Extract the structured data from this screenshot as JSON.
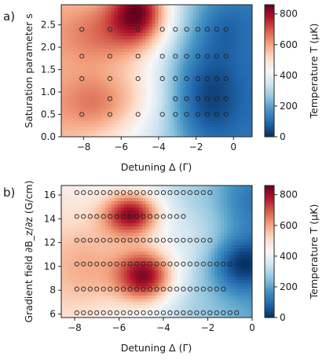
{
  "chart_data": [
    {
      "type": "heatmap",
      "panel_label": "a)",
      "xlabel": "Detuning Δ (Γ)",
      "ylabel": "Saturation parameter s",
      "xlim": [
        -9.2,
        1.0
      ],
      "ylim": [
        0.0,
        2.95
      ],
      "xticks": [
        -8,
        -6,
        -4,
        -2,
        0
      ],
      "xtick_labels": [
        "−8",
        "−6",
        "−4",
        "−2",
        "0"
      ],
      "yticks": [
        0.0,
        0.5,
        1.0,
        1.5,
        2.0,
        2.5
      ],
      "ytick_labels": [
        "0.0",
        "0.5",
        "1.0",
        "1.5",
        "2.0",
        "2.5"
      ],
      "colorbar": {
        "label": "Temperature T (μK)",
        "ticks": [
          0,
          200,
          400,
          600,
          800
        ],
        "tick_labels": [
          "0",
          "200",
          "400",
          "600",
          "800"
        ],
        "range": [
          0,
          860
        ]
      },
      "cmap_stops": [
        "#053061",
        "#2166ac",
        "#4393c3",
        "#92c5de",
        "#d1e5f0",
        "#f7f7f7",
        "#fddbc7",
        "#f4a582",
        "#d6604d",
        "#b2182b",
        "#67001f"
      ],
      "temperature_sources": [
        {
          "x": -5.0,
          "y": 2.8,
          "amplitude": 420,
          "sx": 1.1,
          "sy": 0.55
        },
        {
          "x": -7.0,
          "y": 2.3,
          "amplitude": 180,
          "sx": 1.6,
          "sy": 0.6
        },
        {
          "x": -7.2,
          "y": 0.75,
          "amplitude": 170,
          "sx": 1.5,
          "sy": 0.5
        },
        {
          "x": -5.0,
          "y": 1.0,
          "amplitude": 60,
          "sx": 1.2,
          "sy": 0.5
        },
        {
          "x": -1.5,
          "y": 0.9,
          "amplitude": -200,
          "sx": 1.4,
          "sy": 0.9
        },
        {
          "x": -0.6,
          "y": 2.5,
          "amplitude": -80,
          "sx": 1.0,
          "sy": 0.5
        }
      ],
      "temperature_base": 330,
      "temperature_x_slope": -40,
      "temperature_x_center": -3.8,
      "measurement_points": [
        {
          "x": -8.1,
          "y": 0.5
        },
        {
          "x": -6.6,
          "y": 0.5
        },
        {
          "x": -5.1,
          "y": 0.5
        },
        {
          "x": -3.8,
          "y": 0.5
        },
        {
          "x": -3.1,
          "y": 0.5
        },
        {
          "x": -2.5,
          "y": 0.5
        },
        {
          "x": -1.9,
          "y": 0.5
        },
        {
          "x": -1.4,
          "y": 0.5
        },
        {
          "x": -0.9,
          "y": 0.5
        },
        {
          "x": -0.4,
          "y": 0.5
        },
        {
          "x": -6.6,
          "y": 0.85
        },
        {
          "x": -3.1,
          "y": 0.85
        },
        {
          "x": -2.5,
          "y": 0.85
        },
        {
          "x": -1.9,
          "y": 0.85
        },
        {
          "x": -1.4,
          "y": 0.85
        },
        {
          "x": -0.9,
          "y": 0.85
        },
        {
          "x": -0.4,
          "y": 0.85
        },
        {
          "x": -8.1,
          "y": 1.3
        },
        {
          "x": -6.6,
          "y": 1.3
        },
        {
          "x": -5.1,
          "y": 1.3
        },
        {
          "x": -3.8,
          "y": 1.3
        },
        {
          "x": -3.1,
          "y": 1.3
        },
        {
          "x": -2.5,
          "y": 1.3
        },
        {
          "x": -1.9,
          "y": 1.3
        },
        {
          "x": -1.4,
          "y": 1.3
        },
        {
          "x": -0.9,
          "y": 1.3
        },
        {
          "x": -0.4,
          "y": 1.3
        },
        {
          "x": -8.1,
          "y": 1.8
        },
        {
          "x": -6.6,
          "y": 1.8
        },
        {
          "x": -5.1,
          "y": 1.8
        },
        {
          "x": -3.8,
          "y": 1.8
        },
        {
          "x": -3.1,
          "y": 1.8
        },
        {
          "x": -2.5,
          "y": 1.8
        },
        {
          "x": -1.9,
          "y": 1.8
        },
        {
          "x": -1.4,
          "y": 1.8
        },
        {
          "x": -0.9,
          "y": 1.8
        },
        {
          "x": -0.4,
          "y": 1.8
        },
        {
          "x": -8.1,
          "y": 2.4
        },
        {
          "x": -6.6,
          "y": 2.4
        },
        {
          "x": -5.1,
          "y": 2.4
        },
        {
          "x": -3.8,
          "y": 2.4
        },
        {
          "x": -3.1,
          "y": 2.4
        },
        {
          "x": -2.5,
          "y": 2.4
        },
        {
          "x": -1.9,
          "y": 2.4
        },
        {
          "x": -1.4,
          "y": 2.4
        },
        {
          "x": -0.9,
          "y": 2.4
        },
        {
          "x": -0.4,
          "y": 2.4
        }
      ]
    },
    {
      "type": "heatmap",
      "panel_label": "b)",
      "xlabel": "Detuning Δ (Γ)",
      "ylabel": "Gradient field ∂B_z/∂z (G/cm)",
      "xlim": [
        -8.6,
        0.0
      ],
      "ylim": [
        5.7,
        16.8
      ],
      "xticks": [
        -8,
        -6,
        -4,
        -2,
        0
      ],
      "xtick_labels": [
        "−8",
        "−6",
        "−4",
        "−2",
        "0"
      ],
      "yticks": [
        6,
        8,
        10,
        12,
        14,
        16
      ],
      "ytick_labels": [
        "6",
        "8",
        "10",
        "12",
        "14",
        "16"
      ],
      "colorbar": {
        "label": "Temperature T (μK)",
        "ticks": [
          0,
          200,
          400,
          600,
          800
        ],
        "tick_labels": [
          "0",
          "200",
          "400",
          "600",
          "800"
        ],
        "range": [
          0,
          860
        ]
      },
      "cmap_stops": [
        "#053061",
        "#2166ac",
        "#4393c3",
        "#92c5de",
        "#d1e5f0",
        "#f7f7f7",
        "#fddbc7",
        "#f4a582",
        "#d6604d",
        "#b2182b",
        "#67001f"
      ],
      "temperature_sources": [
        {
          "x": -5.4,
          "y": 14.4,
          "amplitude": 420,
          "sx": 0.9,
          "sy": 1.3
        },
        {
          "x": -4.8,
          "y": 9.2,
          "amplitude": 430,
          "sx": 0.9,
          "sy": 1.6
        },
        {
          "x": -7.2,
          "y": 10.0,
          "amplitude": 160,
          "sx": 1.5,
          "sy": 3.0
        },
        {
          "x": -2.5,
          "y": 12.0,
          "amplitude": 60,
          "sx": 1.2,
          "sy": 2.0
        },
        {
          "x": -0.5,
          "y": 10.2,
          "amplitude": -220,
          "sx": 1.0,
          "sy": 1.6
        },
        {
          "x": -0.2,
          "y": 15.5,
          "amplitude": -90,
          "sx": 1.0,
          "sy": 2.0
        }
      ],
      "temperature_base": 310,
      "temperature_x_slope": -30,
      "temperature_x_center": -3.5,
      "measurement_rows": [
        {
          "y": 6.1,
          "x_start": -7.9,
          "x_end": -0.6,
          "step": 0.3
        },
        {
          "y": 8.1,
          "x_start": -7.9,
          "x_end": -1.2,
          "step": 0.3
        },
        {
          "y": 10.2,
          "x_start": -7.9,
          "x_end": -1.2,
          "step": 0.3
        },
        {
          "y": 12.2,
          "x_start": -7.9,
          "x_end": -1.8,
          "step": 0.3
        },
        {
          "y": 14.2,
          "x_start": -7.9,
          "x_end": -3.0,
          "step": 0.3
        },
        {
          "y": 16.2,
          "x_start": -7.9,
          "x_end": -1.8,
          "step": 0.3
        }
      ],
      "extra_points": [
        {
          "x": -1.0,
          "y": 10.2
        }
      ]
    }
  ]
}
